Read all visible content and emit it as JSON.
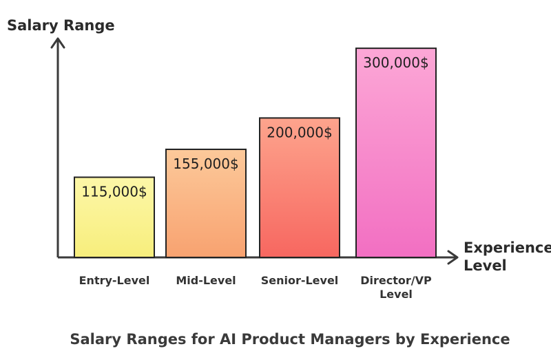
{
  "chart_data": {
    "type": "bar",
    "title": "Salary Ranges for AI Product Managers by Experience",
    "ylabel": "Salary Range",
    "xlabel_lines": [
      "Experience",
      "Level"
    ],
    "categories": [
      [
        "Entry-Level"
      ],
      [
        "Mid-Level"
      ],
      [
        "Senior-Level"
      ],
      [
        "Director/VP",
        "Level"
      ]
    ],
    "values": [
      115000,
      155000,
      200000,
      300000
    ],
    "value_labels": [
      "115,000$",
      "155,000$",
      "200,000$",
      "300,000$"
    ],
    "ylim": [
      0,
      310000
    ],
    "colors": [
      [
        "#fdf7a8",
        "#f7ee7c"
      ],
      [
        "#fcc99a",
        "#f8a270"
      ],
      [
        "#fda48d",
        "#f76760"
      ],
      [
        "#fca7d6",
        "#f26fc2"
      ]
    ]
  }
}
